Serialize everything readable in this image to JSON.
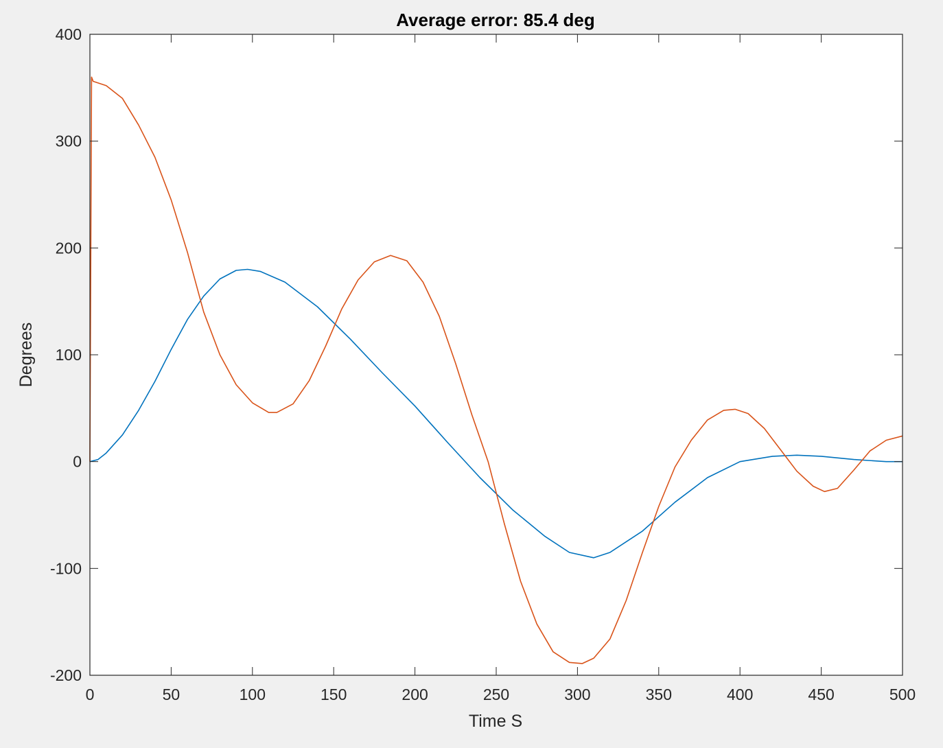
{
  "chart_data": {
    "type": "line",
    "title": "Average error:  85.4 deg",
    "xlabel": "Time S",
    "ylabel": "Degrees",
    "xlim": [
      0,
      500
    ],
    "ylim": [
      -200,
      400
    ],
    "xticks": [
      0,
      50,
      100,
      150,
      200,
      250,
      300,
      350,
      400,
      450,
      500
    ],
    "yticks": [
      -200,
      -100,
      0,
      100,
      200,
      300,
      400
    ],
    "grid": false,
    "legend": "none",
    "series": [
      {
        "color": "#0072bd",
        "x": [
          0,
          5,
          10,
          20,
          30,
          40,
          50,
          60,
          70,
          80,
          90,
          97,
          105,
          120,
          140,
          160,
          180,
          200,
          220,
          240,
          260,
          280,
          295,
          310,
          320,
          340,
          360,
          380,
          400,
          420,
          435,
          450,
          470,
          490,
          500
        ],
        "y": [
          0,
          2,
          8,
          25,
          48,
          75,
          105,
          133,
          155,
          171,
          179,
          180,
          178,
          168,
          145,
          115,
          83,
          52,
          18,
          -15,
          -45,
          -70,
          -85,
          -90,
          -85,
          -65,
          -38,
          -15,
          0,
          5,
          6,
          5,
          2,
          0,
          0
        ]
      },
      {
        "color": "#d95319",
        "x": [
          0,
          1,
          2,
          10,
          20,
          30,
          40,
          50,
          60,
          70,
          80,
          90,
          100,
          110,
          115,
          125,
          135,
          145,
          155,
          165,
          175,
          185,
          195,
          205,
          215,
          225,
          235,
          245,
          255,
          265,
          275,
          285,
          295,
          303,
          310,
          320,
          330,
          340,
          350,
          360,
          370,
          380,
          390,
          397,
          405,
          415,
          425,
          435,
          445,
          452,
          460,
          470,
          480,
          490,
          500
        ],
        "y": [
          0,
          360,
          356,
          352,
          340,
          315,
          285,
          245,
          196,
          140,
          100,
          72,
          55,
          46,
          46,
          54,
          76,
          108,
          143,
          170,
          187,
          193,
          188,
          168,
          136,
          92,
          44,
          0,
          -58,
          -112,
          -152,
          -178,
          -188,
          -189,
          -184,
          -166,
          -130,
          -85,
          -42,
          -5,
          20,
          39,
          48,
          49,
          45,
          31,
          11,
          -9,
          -23,
          -28,
          -25,
          -8,
          10,
          20,
          24
        ]
      }
    ]
  }
}
